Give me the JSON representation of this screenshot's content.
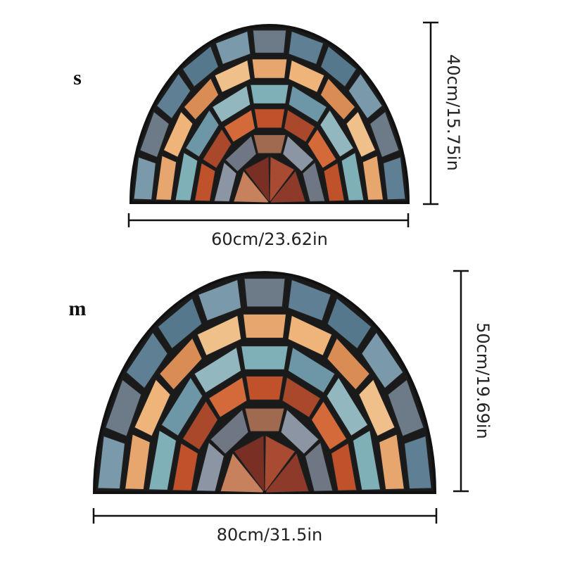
{
  "sizes": [
    {
      "label": "s",
      "width": "60cm/23.62in",
      "height": "40cm/15.75in"
    },
    {
      "label": "m",
      "width": "80cm/31.5in",
      "height": "50cm/19.69in"
    }
  ]
}
